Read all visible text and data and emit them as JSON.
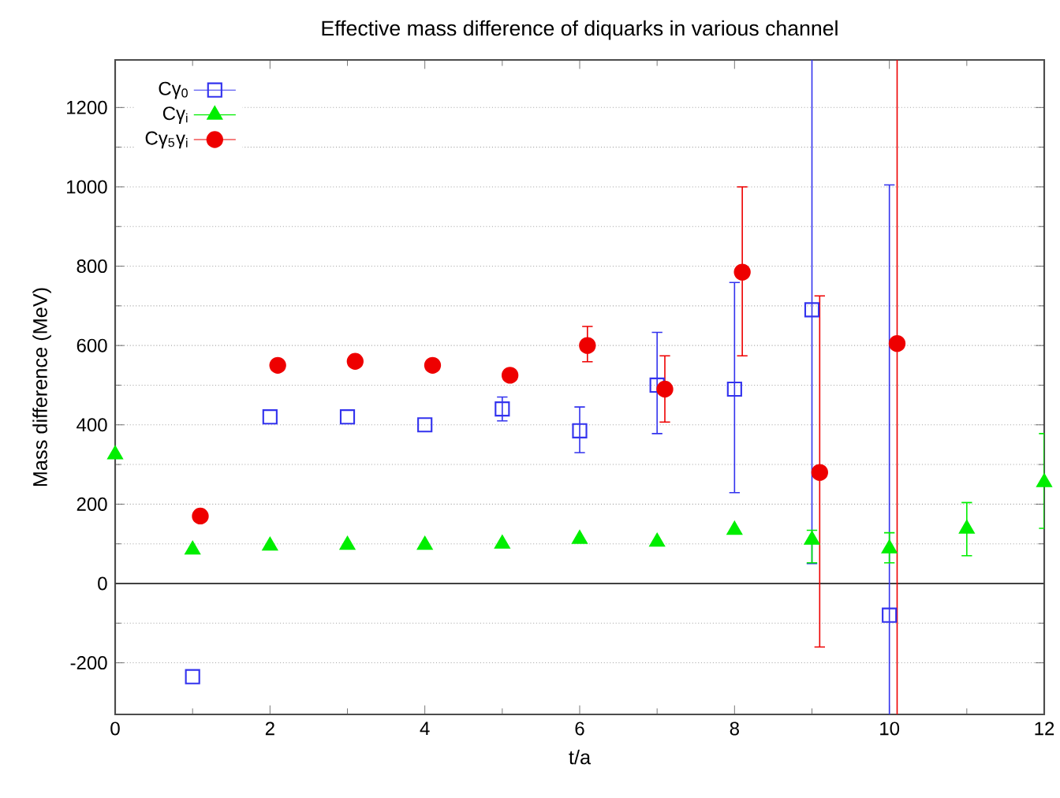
{
  "chart_data": {
    "type": "scatter",
    "title": "Effective mass difference of diquarks in various channel",
    "xlabel": "t/a",
    "ylabel": "Mass difference (MeV)",
    "xlim": [
      0,
      12
    ],
    "ylim": [
      -330,
      1320
    ],
    "xticks": [
      0,
      2,
      4,
      6,
      8,
      10,
      12
    ],
    "yticks": [
      -200,
      0,
      200,
      400,
      600,
      800,
      1000,
      1200
    ],
    "grid": "y",
    "legend": "top left",
    "ref_lines": [
      {
        "axis": "y",
        "value": 0,
        "color": "#404040"
      }
    ],
    "series": [
      {
        "name": "Cγ$_{0}$",
        "color": "#3333ee",
        "marker": "square",
        "x": [
          1,
          2,
          3,
          4,
          5,
          6,
          7,
          8,
          9,
          10
        ],
        "values": [
          -235,
          420,
          420,
          400,
          440,
          385,
          500,
          490,
          690,
          -80
        ],
        "errors": [
          null,
          null,
          null,
          null,
          [
            410,
            470
          ],
          [
            330,
            445
          ],
          [
            378,
            633
          ],
          [
            229,
            759
          ],
          [
            50,
            1320
          ],
          [
            -330,
            1005
          ]
        ]
      },
      {
        "name": "Cγ$_{i}$",
        "color": "#00ee00",
        "marker": "triangle",
        "x": [
          0,
          1,
          2,
          3,
          4,
          5,
          6,
          7,
          8,
          9,
          10,
          11,
          12
        ],
        "values": [
          325,
          85,
          95,
          97,
          97,
          100,
          112,
          105,
          135,
          110,
          88,
          138,
          255
        ],
        "errors": [
          null,
          null,
          null,
          null,
          null,
          null,
          null,
          null,
          null,
          [
            52,
            134
          ],
          [
            52,
            128
          ],
          [
            70,
            204
          ],
          [
            139,
            378
          ]
        ]
      },
      {
        "name": "Cγ$_{5}$γ$_{i}$",
        "color": "#ee0000",
        "marker": "circle",
        "x": [
          1.1,
          2.1,
          3.1,
          4.1,
          5.1,
          6.1,
          7.1,
          8.1,
          9.1,
          10.1
        ],
        "values": [
          170,
          550,
          560,
          550,
          525,
          600,
          490,
          785,
          280,
          605
        ],
        "errors": [
          null,
          null,
          null,
          null,
          null,
          [
            559,
            648
          ],
          [
            407,
            574
          ],
          [
            574,
            1000
          ],
          [
            -160,
            725
          ],
          [
            -330,
            1320
          ]
        ]
      }
    ]
  }
}
